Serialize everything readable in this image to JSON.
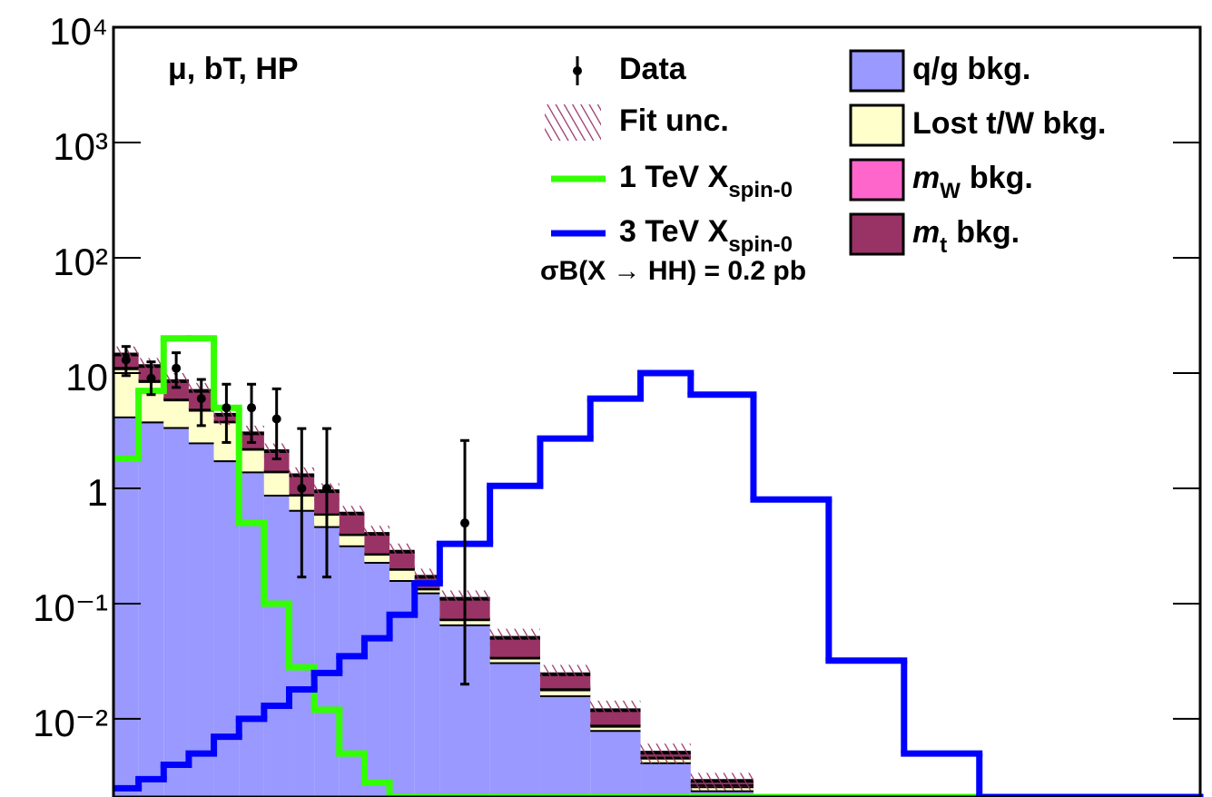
{
  "chart_data": {
    "type": "stacked_histogram",
    "annotations": [
      "μ, bT, HP",
      "σB(X → HH) = 0.2 pb"
    ],
    "bins": [
      0,
      100,
      200,
      300,
      400,
      500,
      600,
      700,
      800,
      900,
      1000,
      1100,
      1200,
      1300,
      1500,
      1700,
      1900,
      2100,
      2300,
      2550,
      2850,
      3150,
      3450,
      4330
    ],
    "xlim": [
      0,
      4330
    ],
    "ylim": [
      0.0021,
      10000
    ],
    "log_y": true,
    "yticks": [
      {
        "value": 0.01,
        "label": "10⁻²"
      },
      {
        "value": 0.1,
        "label": "10⁻¹"
      },
      1,
      10,
      {
        "value": 100,
        "label": "10²"
      },
      {
        "value": 1000,
        "label": "10³"
      },
      {
        "value": 10000,
        "label": "10⁴"
      }
    ],
    "stack": [
      {
        "name": "q/g bkg.",
        "color": "#9999ff",
        "values": [
          4.2,
          3.8,
          3.4,
          2.5,
          1.75,
          1.4,
          0.88,
          0.65,
          0.47,
          0.32,
          0.23,
          0.16,
          0.125,
          0.066,
          0.031,
          0.016,
          0.008,
          0.0042,
          0.0024,
          0,
          0,
          0,
          0
        ]
      },
      {
        "name": "Lost t/W bkg.",
        "color": "#ffffcc",
        "values": [
          6.8,
          4.7,
          2.5,
          2.3,
          2.05,
          0.8,
          0.52,
          0.23,
          0.13,
          0.08,
          0.04,
          0.04,
          0.01,
          0.007,
          0.003,
          0.002,
          0.0007,
          0.0004,
          0.0002,
          0,
          0,
          0,
          0
        ]
      },
      {
        "name": "m",
        "subscript": "W",
        "suffix": "bkg.",
        "color": "#ff66cc",
        "values": [
          0.3,
          0.2,
          0.1,
          0.1,
          0.05,
          0.03,
          0.02,
          0.01,
          0.005,
          0.004,
          0.003,
          0.002,
          0.001,
          0.001,
          0.0005,
          0.0004,
          0.0002,
          0.0001,
          0.0001,
          0,
          0,
          0,
          0
        ]
      },
      {
        "name": "m",
        "subscript": "t",
        "suffix": "bkg.",
        "color": "#993366",
        "values": [
          3.2,
          2.8,
          2.5,
          2.1,
          0.5,
          0.77,
          0.68,
          0.41,
          0.34,
          0.2,
          0.13,
          0.08,
          0.035,
          0.036,
          0.016,
          0.006,
          0.003,
          0.0004,
          0.0002,
          0,
          0,
          0,
          0
        ]
      }
    ],
    "uncertainty": {
      "name": "Fit unc.",
      "color": "#993366",
      "values": [
        2.5,
        2,
        1.5,
        1.2,
        0.8,
        0.5,
        0.35,
        0.22,
        0.16,
        0.1,
        0.07,
        0.05,
        0.03,
        0.02,
        0.01,
        0.005,
        0.0025,
        0.001,
        0.0005,
        0,
        0,
        0,
        0
      ]
    },
    "signals": [
      {
        "name": "1 TeV X",
        "subscript": "spin-0",
        "color": "#33ff00",
        "values": [
          1.8,
          7,
          20,
          20,
          5,
          0.5,
          0.1,
          0.028,
          0.012,
          0.005,
          0.0028,
          0,
          0,
          0,
          0,
          0,
          0,
          0,
          0,
          0,
          0,
          0,
          0
        ]
      },
      {
        "name": "3 TeV X",
        "subscript": "spin-0",
        "color": "#0000ff",
        "values": [
          0.0025,
          0.003,
          0.004,
          0.005,
          0.007,
          0.01,
          0.013,
          0.018,
          0.025,
          0.035,
          0.05,
          0.08,
          0.15,
          0.33,
          1.05,
          2.7,
          6,
          10,
          6.5,
          0.8,
          0.032,
          0.005,
          0
        ]
      }
    ],
    "data": {
      "name": "Data",
      "color": "#000000",
      "x": [
        50,
        150,
        250,
        350,
        450,
        550,
        650,
        750,
        850,
        1400
      ],
      "values": [
        13,
        9,
        11,
        6,
        5,
        5,
        4,
        1,
        1,
        0.5
      ],
      "lower": [
        9.5,
        6.5,
        7.5,
        3.5,
        2.5,
        2.5,
        1.8,
        0.17,
        0.17,
        0.02
      ],
      "upper": [
        17,
        12.5,
        15,
        8.8,
        8,
        8,
        7.3,
        3.3,
        3.3,
        2.6
      ]
    }
  }
}
